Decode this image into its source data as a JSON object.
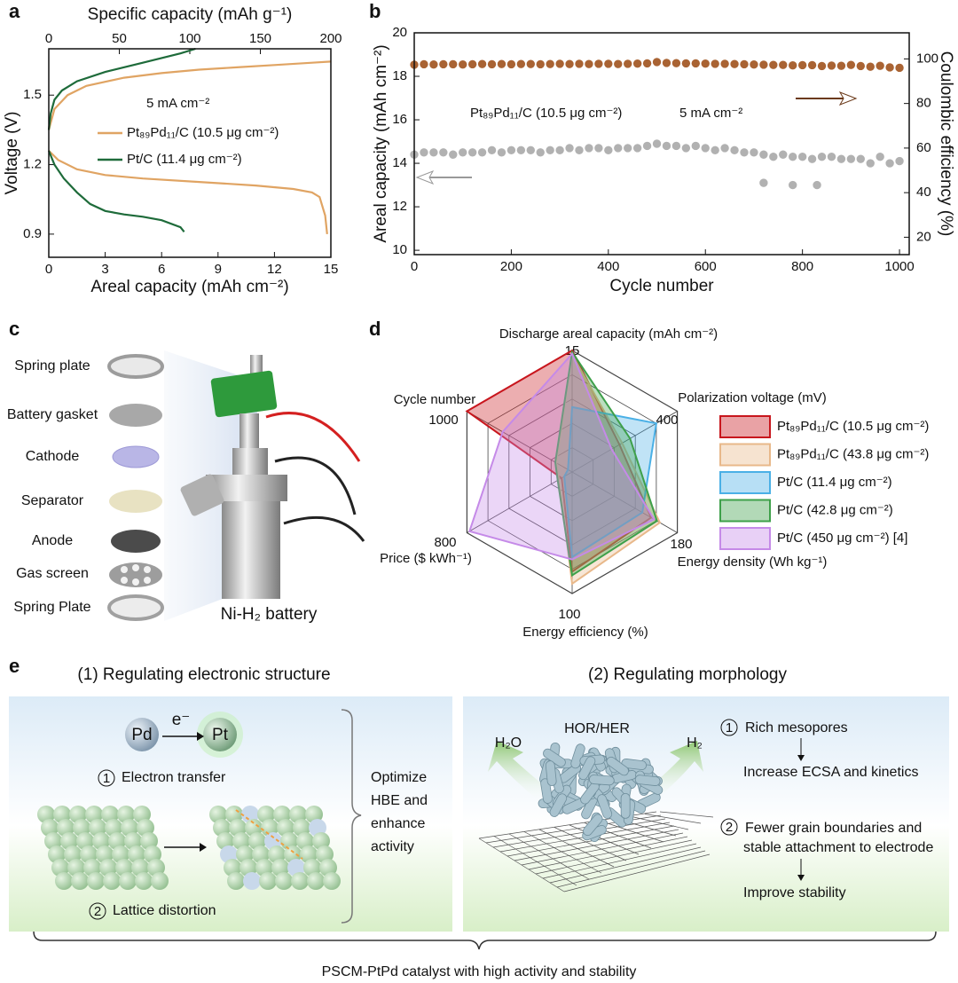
{
  "panel_labels": [
    "a",
    "b",
    "c",
    "d",
    "e"
  ],
  "chart_data": [
    {
      "type": "line",
      "x_label": "Areal capacity (mAh cm⁻²)",
      "x2_label": "Specific capacity (mAh g⁻¹)",
      "y_label": "Voltage (V)",
      "annotation": "5 mA cm⁻²",
      "xlim": [
        0,
        15
      ],
      "xticks": [
        0,
        3,
        6,
        9,
        12,
        15
      ],
      "x2lim": [
        0,
        200
      ],
      "x2ticks": [
        0,
        50,
        100,
        150,
        200
      ],
      "ylim": [
        0.8,
        1.7
      ],
      "yticks": [
        0.9,
        1.2,
        1.5
      ],
      "series": [
        {
          "name": "Pt₈₉Pd₁₁/C (10.5 μg cm⁻²)",
          "color": "#e0a463",
          "x": [
            0,
            0.5,
            1.5,
            3,
            5,
            8,
            11,
            13,
            14,
            14.4,
            14.7,
            14.8,
            null,
            0,
            0.3,
            1,
            2,
            4,
            6,
            8,
            10,
            12,
            14,
            15
          ],
          "values": [
            1.26,
            1.22,
            1.18,
            1.155,
            1.14,
            1.125,
            1.11,
            1.095,
            1.08,
            1.06,
            0.98,
            0.9,
            null,
            1.35,
            1.44,
            1.5,
            1.54,
            1.575,
            1.595,
            1.61,
            1.62,
            1.63,
            1.64,
            1.645
          ]
        },
        {
          "name": "Pt/C (11.4 μg cm⁻²)",
          "color": "#1e6b3a",
          "x": [
            0,
            0.3,
            0.8,
            1.5,
            2.2,
            3,
            4,
            5,
            6,
            7,
            7.2,
            null,
            0,
            0.1,
            0.3,
            0.7,
            1.5,
            3,
            5,
            7,
            7.8
          ],
          "values": [
            1.26,
            1.2,
            1.14,
            1.08,
            1.03,
            1.0,
            0.985,
            0.975,
            0.96,
            0.93,
            0.91,
            null,
            1.35,
            1.42,
            1.48,
            1.52,
            1.56,
            1.6,
            1.64,
            1.68,
            1.7
          ]
        }
      ]
    },
    {
      "type": "scatter",
      "x_label": "Cycle number",
      "y_label": "Areal capacity (mAh cm⁻²)",
      "y2_label": "Coulombic efficiency (%)",
      "annotations": [
        "Pt₈₉Pd₁₁/C (10.5 μg cm⁻²)",
        "5 mA cm⁻²"
      ],
      "xlim": [
        0,
        1020
      ],
      "xticks": [
        0,
        200,
        400,
        600,
        800,
        1000
      ],
      "ylim": [
        9.8,
        20
      ],
      "yticks": [
        10,
        12,
        14,
        16,
        18,
        20
      ],
      "y2lim": [
        12.2,
        111.7
      ],
      "y2ticks": [
        20,
        40,
        60,
        80,
        100
      ],
      "series": [
        {
          "color": "#a8a8a8",
          "x": [
            0,
            20,
            40,
            60,
            80,
            100,
            120,
            140,
            160,
            180,
            200,
            220,
            240,
            260,
            280,
            300,
            320,
            340,
            360,
            380,
            400,
            420,
            440,
            460,
            480,
            500,
            520,
            540,
            560,
            580,
            600,
            620,
            640,
            660,
            680,
            700,
            720,
            740,
            760,
            780,
            800,
            820,
            840,
            860,
            880,
            900,
            920,
            940,
            960,
            980,
            1000,
            720,
            780,
            830
          ],
          "values": [
            14.4,
            14.5,
            14.5,
            14.5,
            14.4,
            14.5,
            14.5,
            14.5,
            14.6,
            14.5,
            14.6,
            14.6,
            14.6,
            14.5,
            14.6,
            14.6,
            14.7,
            14.6,
            14.7,
            14.7,
            14.6,
            14.7,
            14.7,
            14.7,
            14.8,
            14.9,
            14.8,
            14.8,
            14.7,
            14.8,
            14.7,
            14.6,
            14.7,
            14.6,
            14.5,
            14.5,
            14.4,
            14.3,
            14.4,
            14.3,
            14.3,
            14.2,
            14.3,
            14.3,
            14.2,
            14.2,
            14.2,
            14.0,
            14.3,
            14.0,
            14.1,
            13.1,
            13.0,
            13.0
          ]
        },
        {
          "color": "#a0521d",
          "axis": "y2",
          "x": [
            0,
            20,
            40,
            60,
            80,
            100,
            120,
            140,
            160,
            180,
            200,
            220,
            240,
            260,
            280,
            300,
            320,
            340,
            360,
            380,
            400,
            420,
            440,
            460,
            480,
            500,
            520,
            540,
            560,
            580,
            600,
            620,
            640,
            660,
            680,
            700,
            720,
            740,
            760,
            780,
            800,
            820,
            840,
            860,
            880,
            900,
            920,
            940,
            960,
            980,
            1000
          ],
          "values": [
            97.4,
            97.6,
            97.5,
            97.6,
            97.6,
            97.5,
            97.6,
            97.7,
            97.6,
            97.7,
            97.6,
            97.7,
            97.7,
            97.6,
            97.7,
            97.8,
            97.7,
            97.8,
            97.7,
            97.8,
            97.8,
            97.7,
            97.8,
            97.9,
            98.0,
            98.6,
            98.2,
            98.1,
            98.0,
            98.0,
            97.9,
            97.8,
            97.8,
            97.7,
            97.6,
            97.5,
            97.4,
            97.3,
            97.3,
            97.1,
            97.2,
            97.2,
            96.8,
            97.0,
            96.9,
            97.3,
            96.8,
            96.5,
            96.9,
            96.2,
            96.0
          ]
        }
      ]
    },
    {
      "type": "radar",
      "axes": [
        {
          "label": "Discharge areal capacity (mAh cm⁻²)",
          "max": 15
        },
        {
          "label": "Polarization voltage (mV)",
          "max": 400
        },
        {
          "label": "Energy density (Wh kg⁻¹)",
          "max": 180
        },
        {
          "label": "Energy efficiency (%)",
          "max": 100
        },
        {
          "label": "Price ($ kWh⁻¹)",
          "max": 800
        },
        {
          "label": "Cycle number",
          "max": 1000
        }
      ],
      "grid_rings": 5,
      "legend": "right",
      "series": [
        {
          "name": "Pt₈₉Pd₁₁/C (10.5 μg cm⁻²)",
          "color": "#c8161d",
          "values": [
            15,
            180,
            135,
            82,
            80,
            1000
          ]
        },
        {
          "name": "Pt₈₉Pd₁₁/C (43.8 μg cm⁻²)",
          "color": "#e8b88a",
          "values": [
            14.5,
            190,
            150,
            92,
            100,
            150
          ]
        },
        {
          "name": "Pt/C (11.4 μg cm⁻²)",
          "color": "#4ab0e6",
          "values": [
            8,
            320,
            120,
            70,
            60,
            40
          ]
        },
        {
          "name": "Pt/C (42.8 μg cm⁻²)",
          "color": "#3ea04a",
          "values": [
            14.8,
            220,
            145,
            85,
            110,
            160
          ]
        },
        {
          "name": "Pt/C (450 μg cm⁻²) [4]",
          "color": "#c58ae8",
          "values": [
            14.6,
            150,
            140,
            72,
            780,
            660
          ]
        }
      ]
    }
  ],
  "figure_c": {
    "layers": [
      "Spring plate",
      "Battery gasket",
      "Cathode",
      "Separator",
      "Anode",
      "Gas screen",
      "Spring Plate"
    ],
    "caption": "Ni-H₂ battery"
  },
  "figure_e": {
    "section_1": {
      "title": "(1) Regulating electronic structure",
      "electron": "e⁻",
      "atom_donor": "Pd",
      "atom_acceptor": "Pt",
      "marker_1": "1",
      "step_1": "Electron transfer",
      "marker_2": "2",
      "step_2": "Lattice distortion",
      "conclusion": [
        "Optimize",
        "HBE and",
        "enhance",
        "activity"
      ]
    },
    "section_2": {
      "title": "(2) Regulating morphology",
      "center_label": "HOR/HER",
      "left_gas": "H₂O",
      "right_gas": "H₂",
      "marker_1": "1",
      "point_1": "Rich mesopores",
      "result_1": "Increase ECSA and kinetics",
      "marker_2": "2",
      "point_2": [
        "Fewer grain boundaries and",
        "stable attachment to electrode"
      ],
      "result_2": "Improve stability"
    },
    "caption": "PSCM-PtPd catalyst with high activity and stability"
  }
}
